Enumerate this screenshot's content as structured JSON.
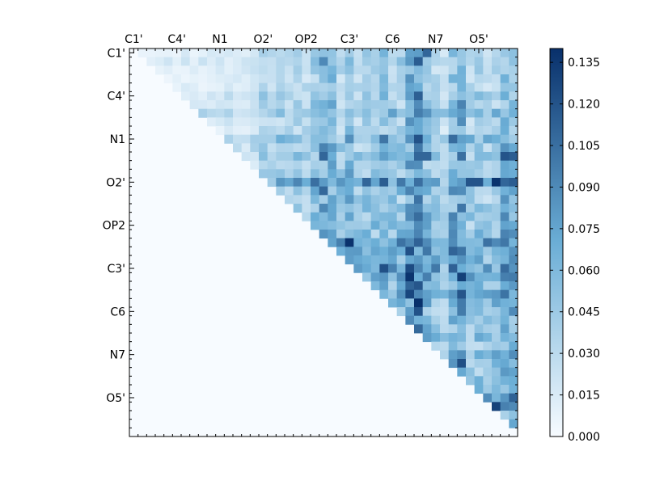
{
  "chart_data": {
    "type": "heatmap",
    "title": "",
    "xlabel": "",
    "ylabel": "",
    "tick_labels": [
      "C1'",
      "C4'",
      "N1",
      "O2'",
      "OP2",
      "C3'",
      "C6",
      "N7",
      "O5'"
    ],
    "tick_label_positions": [
      0.5,
      5.5,
      10.5,
      15.5,
      20.5,
      25.5,
      30.5,
      35.5,
      40.5
    ],
    "matrix_size": 45,
    "x_tick_position": "top",
    "colormap": "Blues",
    "colors": {
      "low": "#f7fbff",
      "mid": "#6baed6",
      "high": "#08306b"
    },
    "vmin": 0.0,
    "vmax": 0.14,
    "colorbar_ticks": [
      "0.000",
      "0.015",
      "0.030",
      "0.045",
      "0.060",
      "0.075",
      "0.090",
      "0.105",
      "0.120",
      "0.135"
    ],
    "colorbar_values": [
      0.0,
      0.015,
      0.03,
      0.045,
      0.06,
      0.075,
      0.09,
      0.105,
      0.12,
      0.135
    ],
    "triangle": "upper",
    "row_base": [
      0.006,
      0.011,
      0.006,
      0.004,
      0.006,
      0.013,
      0.01,
      0.025,
      0.008,
      0.007,
      0.03,
      0.016,
      0.02,
      0.01,
      0.016,
      0.038,
      0.022,
      0.015,
      0.016,
      0.022,
      0.022,
      0.025,
      0.05,
      0.034,
      0.032,
      0.046,
      0.04,
      0.03,
      0.034,
      0.034,
      0.022,
      0.02,
      0.018,
      0.026,
      0.018,
      0.032,
      0.03,
      0.02,
      0.024,
      0.02,
      0.045,
      0.022,
      0.01,
      0.012,
      0.004
    ],
    "col_base": [
      0.002,
      0.004,
      0.006,
      0.004,
      0.005,
      0.004,
      0.006,
      0.004,
      0.005,
      0.006,
      0.006,
      0.008,
      0.008,
      0.008,
      0.012,
      0.03,
      0.018,
      0.02,
      0.022,
      0.026,
      0.024,
      0.034,
      0.056,
      0.046,
      0.024,
      0.046,
      0.022,
      0.03,
      0.028,
      0.04,
      0.03,
      0.028,
      0.056,
      0.068,
      0.036,
      0.026,
      0.014,
      0.044,
      0.056,
      0.022,
      0.028,
      0.022,
      0.026,
      0.044,
      0.04
    ],
    "hotspots": [
      {
        "row": 15,
        "col": 21,
        "value": 0.105
      },
      {
        "row": 15,
        "col": 27,
        "value": 0.11
      },
      {
        "row": 15,
        "col": 29,
        "value": 0.115
      },
      {
        "row": 15,
        "col": 31,
        "value": 0.1
      },
      {
        "row": 15,
        "col": 33,
        "value": 0.105
      },
      {
        "row": 15,
        "col": 38,
        "value": 0.08
      },
      {
        "row": 15,
        "col": 39,
        "value": 0.12
      },
      {
        "row": 15,
        "col": 40,
        "value": 0.12
      },
      {
        "row": 15,
        "col": 42,
        "value": 0.138
      },
      {
        "row": 15,
        "col": 43,
        "value": 0.11
      },
      {
        "row": 15,
        "col": 44,
        "value": 0.115
      },
      {
        "row": 12,
        "col": 22,
        "value": 0.11
      },
      {
        "row": 12,
        "col": 33,
        "value": 0.11
      },
      {
        "row": 12,
        "col": 34,
        "value": 0.11
      },
      {
        "row": 12,
        "col": 43,
        "value": 0.12
      },
      {
        "row": 12,
        "col": 44,
        "value": 0.115
      },
      {
        "row": 1,
        "col": 33,
        "value": 0.115
      },
      {
        "row": 0,
        "col": 34,
        "value": 0.11
      },
      {
        "row": 41,
        "col": 42,
        "value": 0.13
      },
      {
        "row": 41,
        "col": 43,
        "value": 0.095
      },
      {
        "row": 41,
        "col": 44,
        "value": 0.09
      }
    ]
  }
}
